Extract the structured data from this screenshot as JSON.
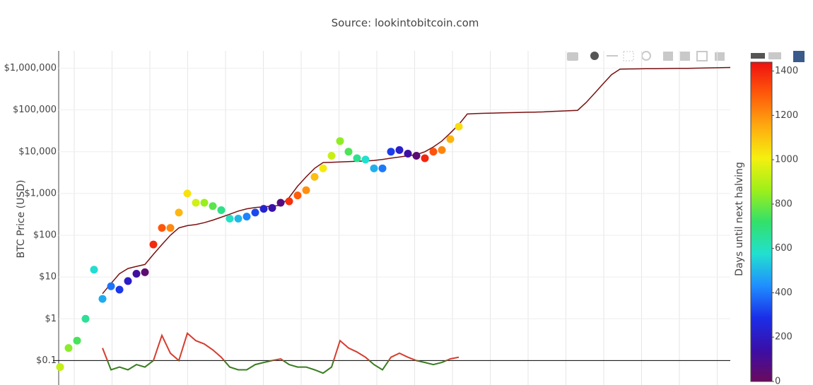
{
  "chart_data": {
    "type": "line",
    "subtitle": "Source: lookintobitcoin.com",
    "y_label": "BTC Price (USD)",
    "colorbar_label": "Days until next halving",
    "categories": [
      null,
      null,
      null,
      null,
      null,
      null,
      null,
      null,
      null,
      null,
      null,
      null,
      null,
      null,
      null,
      null,
      null,
      null,
      null,
      null,
      null,
      null,
      null,
      null,
      null,
      null,
      null,
      null,
      null,
      null,
      null,
      null,
      null,
      null,
      null,
      null,
      null,
      null,
      null,
      null,
      null,
      null,
      null,
      null,
      null,
      null,
      null,
      null,
      null,
      null,
      null,
      null,
      null,
      null,
      null,
      null,
      null,
      null,
      null,
      null,
      null,
      null,
      null,
      null,
      null,
      null,
      null,
      null,
      null,
      null,
      null,
      null,
      null,
      null,
      null,
      null,
      null,
      null,
      null,
      null
    ],
    "yscale": "log",
    "ylim": [
      0.026,
      2600000
    ],
    "yticks": [
      {
        "value": 0.1,
        "label": "$0.1"
      },
      {
        "value": 1,
        "label": "$1"
      },
      {
        "value": 10,
        "label": "$10"
      },
      {
        "value": 100,
        "label": "$100"
      },
      {
        "value": 1000,
        "label": "$1,000"
      },
      {
        "value": 10000,
        "label": "$10,000"
      },
      {
        "value": 100000,
        "label": "$100,000"
      },
      {
        "value": 1000000,
        "label": "$1,000,000"
      }
    ],
    "grid": true,
    "clim": [
      0,
      1440
    ],
    "cticks": [
      0,
      200,
      400,
      600,
      800,
      1000,
      1200,
      1400
    ],
    "colorscale": [
      "#6a0a5e",
      "#3a0fa8",
      "#1a2ee8",
      "#1f8fff",
      "#22e0d0",
      "#33e06a",
      "#9fef1a",
      "#f5f00f",
      "#ffaa10",
      "#ff5a0a",
      "#ee1010"
    ],
    "series": [
      {
        "type": "scatter",
        "values": [
          0.07,
          0.2,
          0.3,
          1,
          15,
          3,
          6,
          5,
          8,
          12,
          13,
          60,
          150,
          150,
          350,
          1000,
          600,
          600,
          500,
          400,
          250,
          250,
          280,
          350,
          430,
          450,
          600,
          650,
          900,
          1200,
          2500,
          4000,
          8000,
          18000,
          10000,
          7000,
          6500,
          4000,
          4000,
          10000,
          11000,
          9000,
          8000,
          7000,
          10000,
          11000,
          20000,
          40000,
          null,
          null,
          null,
          null,
          null,
          null,
          null,
          null,
          null,
          null,
          null,
          null,
          null,
          null,
          null,
          null,
          null,
          null,
          null,
          null,
          null,
          null,
          null,
          null,
          null,
          null,
          null,
          null,
          null,
          null,
          null,
          null
        ],
        "color_values": [
          925,
          836,
          747,
          659,
          570,
          481,
          392,
          303,
          215,
          126,
          37,
          1391,
          1302,
          1213,
          1125,
          1036,
          947,
          858,
          770,
          681,
          592,
          503,
          414,
          326,
          237,
          148,
          59,
          1376,
          1288,
          1199,
          1110,
          1021,
          932,
          844,
          755,
          666,
          577,
          488,
          400,
          311,
          222,
          133,
          44,
          1399,
          1310,
          1221,
          1132,
          1043,
          null,
          null,
          null,
          null,
          null,
          null,
          null,
          null,
          null,
          null,
          null,
          null,
          null,
          null,
          null,
          null,
          null,
          null,
          null,
          null,
          null,
          null,
          null,
          null,
          null,
          null,
          null,
          null,
          null,
          null,
          null,
          null
        ]
      },
      {
        "type": "line",
        "color": "#7a1010",
        "values": [
          null,
          null,
          null,
          null,
          null,
          4,
          7,
          12,
          16,
          18,
          20,
          35,
          60,
          100,
          150,
          170,
          180,
          200,
          230,
          270,
          320,
          380,
          430,
          460,
          480,
          500,
          520,
          800,
          1500,
          2500,
          4000,
          5500,
          5600,
          5700,
          5800,
          5900,
          6000,
          6200,
          6500,
          7000,
          7500,
          8000,
          8500,
          10000,
          13000,
          18000,
          28000,
          45000,
          80000,
          82000,
          83000,
          84000,
          85000,
          86000,
          87000,
          88000,
          89000,
          90000,
          92000,
          94000,
          96000,
          98000,
          150000,
          250000,
          420000,
          700000,
          950000,
          960000,
          965000,
          970000,
          975000,
          980000,
          985000,
          990000,
          995000,
          1000000,
          1010000,
          1020000,
          1030000,
          1040000
        ]
      },
      {
        "type": "line",
        "threshold": 0.1,
        "color_above": "#d63c2f",
        "color_below": "#3a7d22",
        "threshold_color": "#000000",
        "values": [
          null,
          null,
          null,
          null,
          null,
          0.2,
          0.06,
          0.07,
          0.06,
          0.08,
          0.07,
          0.1,
          0.4,
          0.15,
          0.1,
          0.45,
          0.3,
          0.25,
          0.18,
          0.12,
          0.07,
          0.06,
          0.06,
          0.08,
          0.09,
          0.1,
          0.11,
          0.08,
          0.07,
          0.07,
          0.06,
          0.05,
          0.07,
          0.3,
          0.2,
          0.16,
          0.12,
          0.08,
          0.06,
          0.12,
          0.15,
          0.12,
          0.1,
          0.09,
          0.08,
          0.09,
          0.11,
          0.12,
          null,
          null,
          null,
          null,
          null,
          null,
          null,
          null,
          null,
          null,
          null,
          null,
          null,
          null,
          null,
          null,
          null,
          null,
          null,
          null,
          null,
          null,
          null,
          null,
          null,
          null,
          null,
          null,
          null,
          null,
          null,
          null
        ]
      }
    ]
  }
}
